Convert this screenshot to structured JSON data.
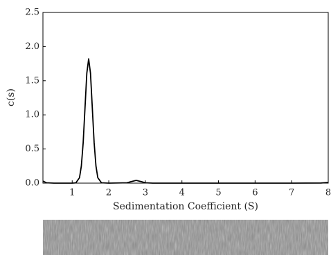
{
  "chart_data": {
    "type": "line",
    "xlabel": "Sedimentation Coefficient (S)",
    "ylabel": "c(s)",
    "x": [
      0.2,
      0.3,
      0.5,
      1.0,
      1.1,
      1.2,
      1.25,
      1.3,
      1.35,
      1.4,
      1.45,
      1.5,
      1.55,
      1.6,
      1.65,
      1.7,
      1.8,
      2.0,
      2.5,
      2.6,
      2.75,
      2.9,
      3.0,
      3.2,
      4.0,
      5.0,
      6.0,
      7.0,
      7.8,
      8.0
    ],
    "values": [
      0.03,
      0.005,
      0,
      0,
      0.004,
      0.08,
      0.25,
      0.59,
      1.1,
      1.61,
      1.82,
      1.61,
      1.1,
      0.59,
      0.25,
      0.08,
      0.005,
      0,
      0.005,
      0.02,
      0.04,
      0.02,
      0.005,
      0,
      0,
      0,
      0,
      0,
      0.002,
      0.01
    ],
    "color": "#000000",
    "xlim": [
      0.2,
      8
    ],
    "xticks": [
      1,
      2,
      3,
      4,
      5,
      6,
      7,
      8
    ],
    "ylim": [
      0,
      2.5
    ],
    "yticks": [
      {
        "value": 0,
        "label": "0.0"
      },
      0.5,
      {
        "value": 1,
        "label": "1.0"
      },
      1.5,
      {
        "value": 2,
        "label": "2.0"
      },
      2.5
    ]
  }
}
